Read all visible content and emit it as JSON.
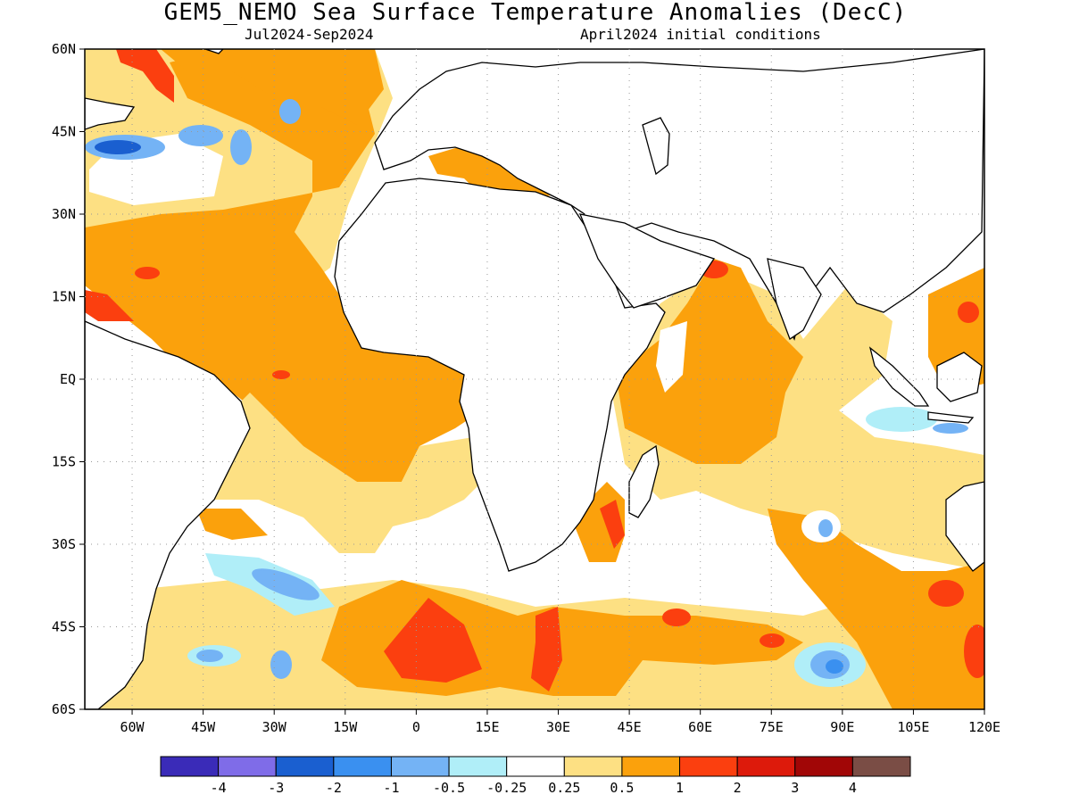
{
  "title": "GEM5_NEMO Sea Surface Temperature Anomalies (DecC)",
  "subtitle_left": "Jul2024-Sep2024",
  "subtitle_right": "April2024 initial conditions",
  "map": {
    "lon_range": [
      -70,
      120
    ],
    "lat_range": [
      -60,
      60
    ],
    "lon_ticks": [
      {
        "value": -60,
        "label": "60W"
      },
      {
        "value": -45,
        "label": "45W"
      },
      {
        "value": -30,
        "label": "30W"
      },
      {
        "value": -15,
        "label": "15W"
      },
      {
        "value": 0,
        "label": "0"
      },
      {
        "value": 15,
        "label": "15E"
      },
      {
        "value": 30,
        "label": "30E"
      },
      {
        "value": 45,
        "label": "45E"
      },
      {
        "value": 60,
        "label": "60E"
      },
      {
        "value": 75,
        "label": "75E"
      },
      {
        "value": 90,
        "label": "90E"
      },
      {
        "value": 105,
        "label": "105E"
      },
      {
        "value": 120,
        "label": "120E"
      }
    ],
    "lat_ticks": [
      {
        "value": 60,
        "label": "60N"
      },
      {
        "value": 45,
        "label": "45N"
      },
      {
        "value": 30,
        "label": "30N"
      },
      {
        "value": 15,
        "label": "15N"
      },
      {
        "value": 0,
        "label": "EQ"
      },
      {
        "value": -15,
        "label": "15S"
      },
      {
        "value": -30,
        "label": "30S"
      },
      {
        "value": -45,
        "label": "45S"
      },
      {
        "value": -60,
        "label": "60S"
      }
    ],
    "grid": "dotted"
  },
  "colorbar": {
    "colors": [
      "#3a2bb8",
      "#7f6ce8",
      "#1a5fd0",
      "#3a90f0",
      "#74b3f5",
      "#b0eef8",
      "#ffffff",
      "#fde083",
      "#fba10c",
      "#fb3f0f",
      "#dd1a0b",
      "#a10606",
      "#7a4d45"
    ],
    "labels": [
      "-4",
      "-3",
      "-2",
      "-1",
      "-0.5",
      "-0.25",
      "0.25",
      "0.5",
      "1",
      "2",
      "3",
      "4"
    ]
  }
}
